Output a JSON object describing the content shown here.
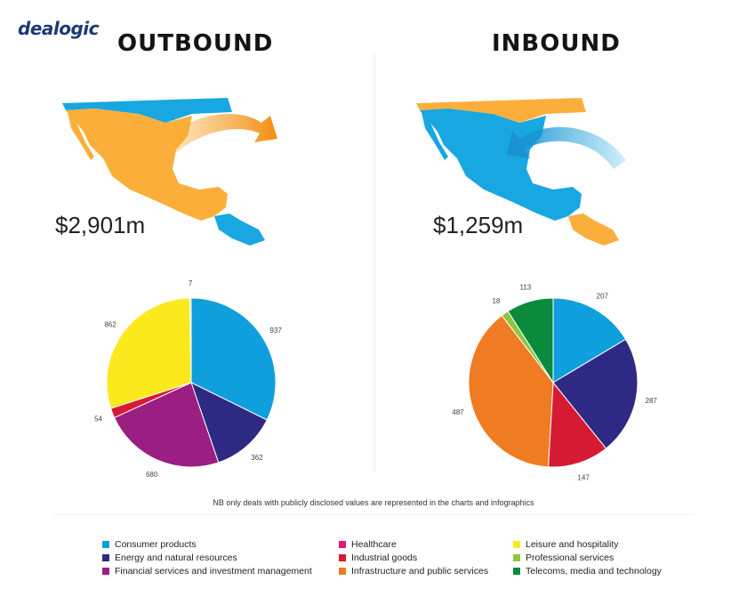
{
  "brand": {
    "logo_text": "dealogic"
  },
  "colors": {
    "Consumer products": "#0e9fdc",
    "Energy and natural resources": "#2e2a84",
    "Financial services and investment management": "#9b1e82",
    "Healthcare": "#e5197a",
    "Industrial goods": "#d71a33",
    "Infrastructure and public services": "#ef7b22",
    "Leisure and hospitality": "#fbe91e",
    "Professional services": "#8dc63f",
    "Telecoms, media and technology": "#0a8a3c",
    "map_orange": "#fbaf3a",
    "map_blue": "#18a7e0"
  },
  "outbound": {
    "title": "OUTBOUND",
    "value": "$2,901m"
  },
  "inbound": {
    "title": "INBOUND",
    "value": "$1,259m"
  },
  "chart_data": [
    {
      "type": "pie",
      "title": "OUTBOUND",
      "categories": [
        "Consumer products",
        "Energy and natural resources",
        "Financial services and investment management",
        "Industrial goods",
        "Leisure and hospitality",
        "Professional services"
      ],
      "values": [
        937,
        362,
        680,
        54,
        862,
        7
      ],
      "labels": [
        "937",
        "362",
        "680",
        "54",
        "862",
        "7"
      ]
    },
    {
      "type": "pie",
      "title": "INBOUND",
      "categories": [
        "Consumer products",
        "Energy and natural resources",
        "Industrial goods",
        "Infrastructure and public services",
        "Professional services",
        "Telecoms, media and technology"
      ],
      "values": [
        207,
        287,
        147,
        487,
        18,
        113
      ],
      "labels": [
        "207",
        "287",
        "147",
        "487",
        "18",
        "113"
      ]
    }
  ],
  "footnote": "NB only deals with publicly disclosed values are represented in the charts and infographics",
  "legend": [
    "Consumer products",
    "Energy and natural resources",
    "Financial services and investment management",
    "Healthcare",
    "Industrial goods",
    "Infrastructure and public services",
    "Leisure and hospitality",
    "Professional services",
    "Telecoms, media and technology"
  ]
}
